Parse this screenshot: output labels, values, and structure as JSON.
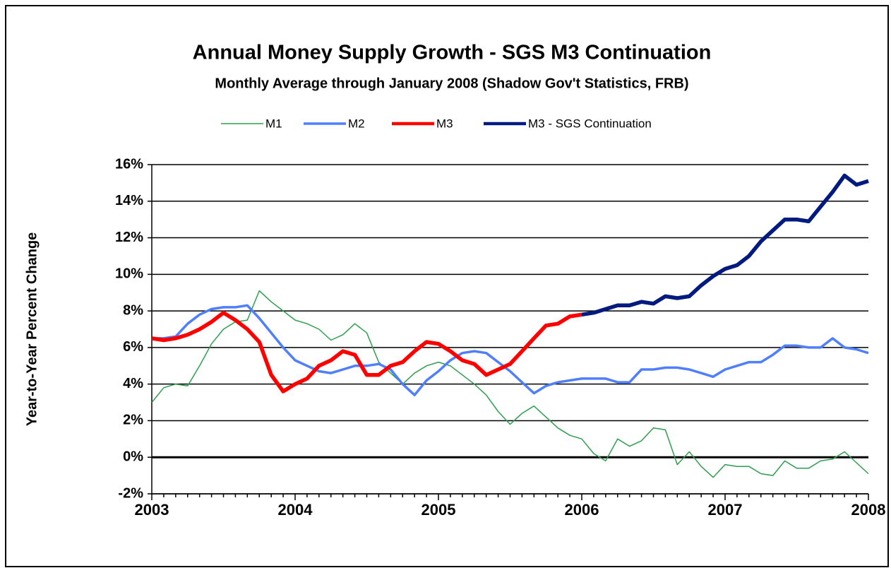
{
  "chart_data": {
    "type": "line",
    "title": "Annual Money Supply Growth - SGS M3 Continuation",
    "subtitle": "Monthly Average through January 2008 (Shadow Gov't Statistics, FRB)",
    "y_label": "Year-to-Year Percent Change",
    "categories": [
      "2003",
      null,
      null,
      null,
      null,
      null,
      null,
      null,
      null,
      null,
      null,
      null,
      "2004",
      null,
      null,
      null,
      null,
      null,
      null,
      null,
      null,
      null,
      null,
      null,
      "2005",
      null,
      null,
      null,
      null,
      null,
      null,
      null,
      null,
      null,
      null,
      null,
      "2006",
      null,
      null,
      null,
      null,
      null,
      null,
      null,
      null,
      null,
      null,
      null,
      "2007",
      null,
      null,
      null,
      null,
      null,
      null,
      null,
      null,
      null,
      null,
      null,
      "2008"
    ],
    "series": [
      {
        "name": "M1",
        "color": "#2e9e4e",
        "values": [
          3.0,
          3.8,
          4.0,
          3.9,
          5.0,
          6.2,
          7.0,
          7.4,
          7.5,
          9.1,
          8.5,
          8.0,
          7.5,
          7.3,
          7.0,
          6.4,
          6.7,
          7.3,
          6.8,
          5.2,
          4.6,
          4.0,
          4.6,
          5.0,
          5.2,
          5.0,
          4.5,
          4.0,
          3.4,
          2.5,
          1.8,
          2.4,
          2.8,
          2.2,
          1.6,
          1.2,
          1.0,
          0.2,
          -0.2,
          1.0,
          0.6,
          0.9,
          1.6,
          1.5,
          -0.4,
          0.3,
          -0.5,
          -1.1,
          -0.4,
          -0.5,
          -0.5,
          -0.9,
          -1.0,
          -0.2,
          -0.6,
          -0.6,
          -0.2,
          -0.1,
          0.3,
          -0.3,
          -0.9
        ]
      },
      {
        "name": "M2",
        "color": "#4f7fff",
        "values": [
          6.5,
          6.5,
          6.6,
          7.3,
          7.8,
          8.1,
          8.2,
          8.2,
          8.3,
          7.6,
          6.8,
          6.0,
          5.3,
          5.0,
          4.7,
          4.6,
          4.8,
          5.0,
          5.0,
          5.1,
          4.8,
          4.0,
          3.4,
          4.2,
          4.7,
          5.3,
          5.7,
          5.8,
          5.7,
          5.2,
          4.7,
          4.1,
          3.5,
          3.9,
          4.1,
          4.2,
          4.3,
          4.3,
          4.3,
          4.1,
          4.1,
          4.8,
          4.8,
          4.9,
          4.9,
          4.8,
          4.6,
          4.4,
          4.8,
          5.0,
          5.2,
          5.2,
          5.6,
          6.1,
          6.1,
          6.0,
          6.0,
          6.5,
          6.0,
          5.9,
          5.7
        ]
      },
      {
        "name": "M3",
        "color": "#ff0000",
        "values": [
          6.5,
          6.4,
          6.5,
          6.7,
          7.0,
          7.4,
          7.9,
          7.5,
          7.0,
          6.3,
          4.5,
          3.6,
          4.0,
          4.3,
          5.0,
          5.3,
          5.8,
          5.6,
          4.5,
          4.5,
          5.0,
          5.2,
          5.8,
          6.3,
          6.2,
          5.8,
          5.3,
          5.1,
          4.5,
          4.8,
          5.1,
          5.8,
          6.5,
          7.2,
          7.3,
          7.7,
          7.8,
          null,
          null,
          null,
          null,
          null,
          null,
          null,
          null,
          null,
          null,
          null,
          null,
          null,
          null,
          null,
          null,
          null,
          null,
          null,
          null,
          null,
          null,
          null,
          null
        ]
      },
      {
        "name": "M3 - SGS Continuation",
        "color": "#001a80",
        "values": [
          null,
          null,
          null,
          null,
          null,
          null,
          null,
          null,
          null,
          null,
          null,
          null,
          null,
          null,
          null,
          null,
          null,
          null,
          null,
          null,
          null,
          null,
          null,
          null,
          null,
          null,
          null,
          null,
          null,
          null,
          null,
          null,
          null,
          null,
          null,
          null,
          7.8,
          7.9,
          8.1,
          8.3,
          8.3,
          8.5,
          8.4,
          8.8,
          8.7,
          8.8,
          9.4,
          9.9,
          10.3,
          10.5,
          11.0,
          11.8,
          12.4,
          13.0,
          13.0,
          12.9,
          13.7,
          14.5,
          15.4,
          14.9,
          15.1
        ]
      }
    ],
    "ylim": [
      -2,
      16
    ],
    "yticks": [
      {
        "value": -2,
        "label": "-2%"
      },
      {
        "value": 0,
        "label": "0%"
      },
      {
        "value": 2,
        "label": "2%"
      },
      {
        "value": 4,
        "label": "4%"
      },
      {
        "value": 6,
        "label": "6%"
      },
      {
        "value": 8,
        "label": "8%"
      },
      {
        "value": 10,
        "label": "10%"
      },
      {
        "value": 12,
        "label": "12%"
      },
      {
        "value": 14,
        "label": "14%"
      },
      {
        "value": 16,
        "label": "16%"
      }
    ],
    "grid": true
  }
}
